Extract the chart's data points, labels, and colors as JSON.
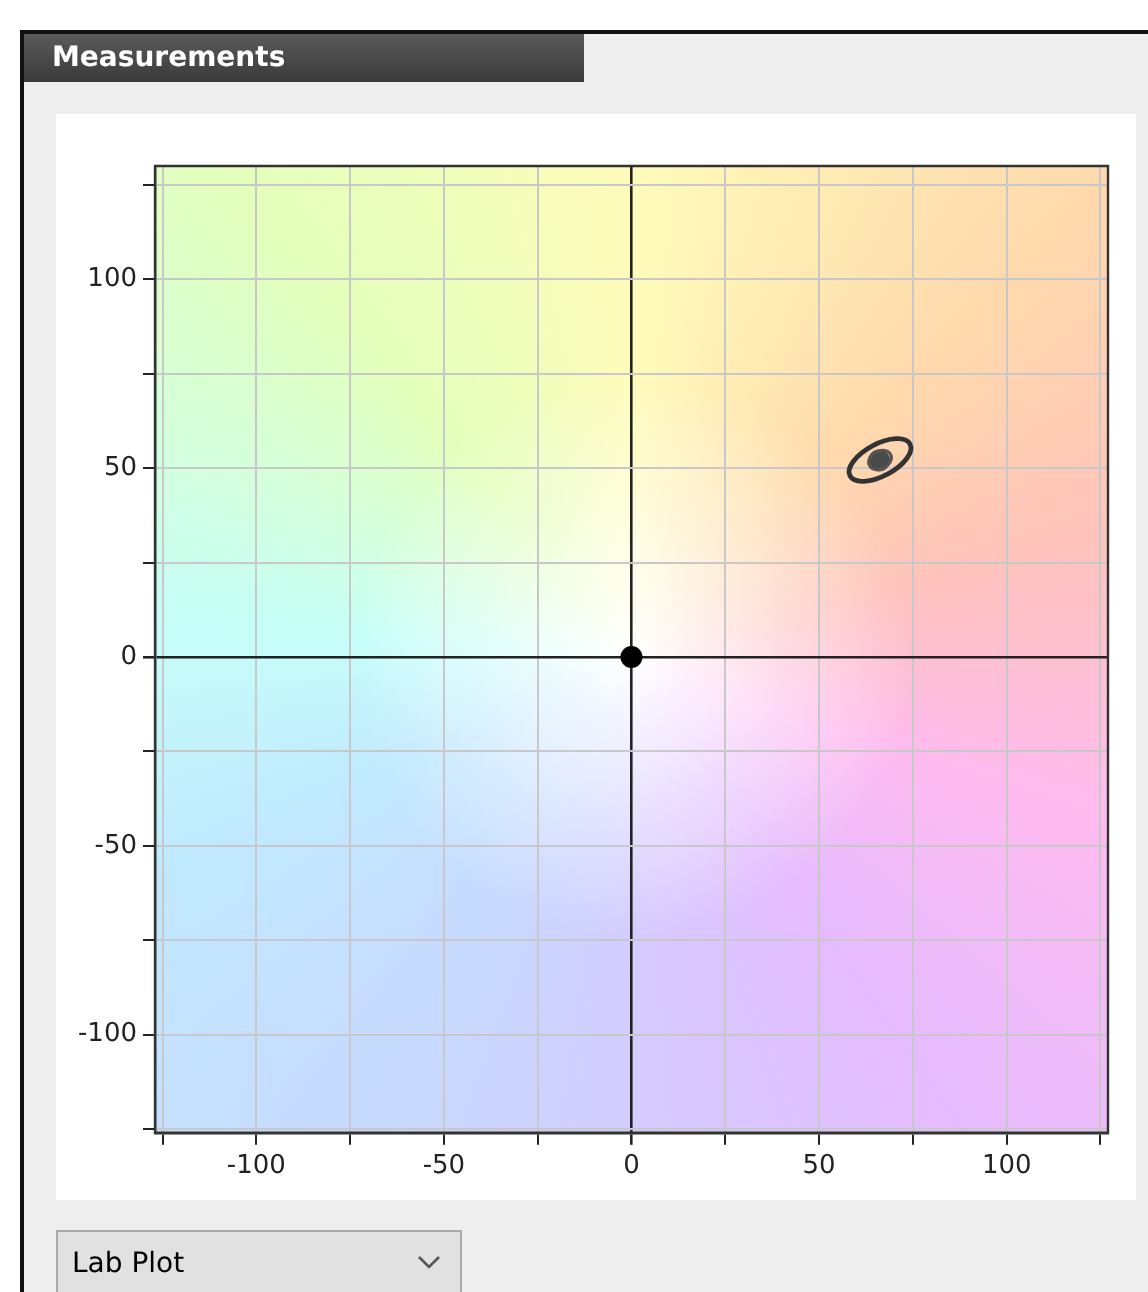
{
  "chart_data": {
    "type": "scatter",
    "title": "Measurements",
    "annotations": [
      "Lab Plot"
    ],
    "series": [
      {
        "x": [
          0
        ],
        "values": [
          0
        ],
        "color": "#000000"
      },
      {
        "x": [
          66
        ],
        "values": [
          52
        ],
        "color": "#4a4a4a"
      }
    ],
    "xlim": [
      -127,
      127
    ],
    "ylim": [
      -126,
      130
    ],
    "xticks": [
      {
        "value": -125,
        "label": null
      },
      -100,
      {
        "value": -75,
        "label": null
      },
      -50,
      {
        "value": -25,
        "label": null
      },
      0,
      {
        "value": 25,
        "label": null
      },
      50,
      {
        "value": 75,
        "label": null
      },
      100,
      {
        "value": 125,
        "label": null
      }
    ],
    "yticks": [
      {
        "value": -125,
        "label": null
      },
      -100,
      {
        "value": -75,
        "label": null
      },
      -50,
      {
        "value": -25,
        "label": null
      },
      0,
      {
        "value": 25,
        "label": null
      },
      50,
      {
        "value": 75,
        "label": null
      },
      100,
      {
        "value": 125,
        "label": null
      }
    ],
    "grid": true,
    "marker": "circle",
    "legend": false
  }
}
